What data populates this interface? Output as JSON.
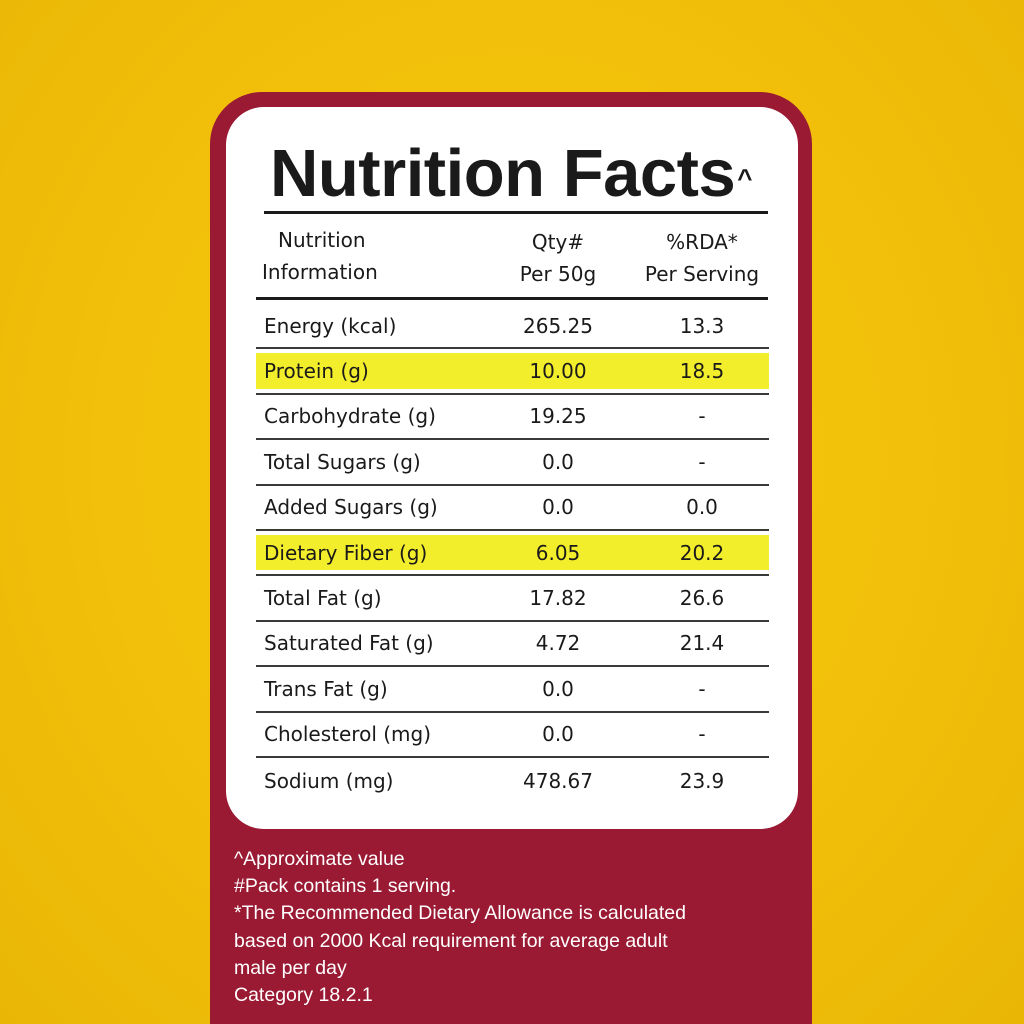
{
  "title": "Nutrition Facts",
  "title_mark": "^",
  "header": {
    "col1": [
      "Nutrition",
      "Information"
    ],
    "col2": [
      "Qty#",
      "Per 50g"
    ],
    "col3": [
      "%RDA*",
      "Per Serving"
    ]
  },
  "rows": [
    {
      "name": "Energy (kcal)",
      "qty": "265.25",
      "rda": "13.3",
      "highlight": false
    },
    {
      "name": "Protein (g)",
      "qty": "10.00",
      "rda": "18.5",
      "highlight": true
    },
    {
      "name": "Carbohydrate (g)",
      "qty": "19.25",
      "rda": "-",
      "highlight": false
    },
    {
      "name": "Total Sugars (g)",
      "qty": "0.0",
      "rda": "-",
      "highlight": false
    },
    {
      "name": "Added Sugars (g)",
      "qty": "0.0",
      "rda": "0.0",
      "highlight": false
    },
    {
      "name": "Dietary Fiber (g)",
      "qty": "6.05",
      "rda": "20.2",
      "highlight": true
    },
    {
      "name": "Total Fat (g)",
      "qty": "17.82",
      "rda": "26.6",
      "highlight": false
    },
    {
      "name": "Saturated Fat (g)",
      "qty": "4.72",
      "rda": "21.4",
      "highlight": false
    },
    {
      "name": "Trans Fat (g)",
      "qty": "0.0",
      "rda": "-",
      "highlight": false
    },
    {
      "name": "Cholesterol (mg)",
      "qty": "0.0",
      "rda": "-",
      "highlight": false
    },
    {
      "name": "Sodium (mg)",
      "qty": "478.67",
      "rda": "23.9",
      "highlight": false
    }
  ],
  "notes": [
    "^Approximate value",
    "#Pack contains 1 serving.",
    "*The Recommended Dietary Allowance is calculated",
    "based on 2000 Kcal requirement for average adult",
    "male per day",
    "Category 18.2.1"
  ],
  "colors": {
    "background": "#f2c00a",
    "panel": "#9a1a33",
    "highlight": "#f3ee2b",
    "text": "#1a1a1a"
  }
}
